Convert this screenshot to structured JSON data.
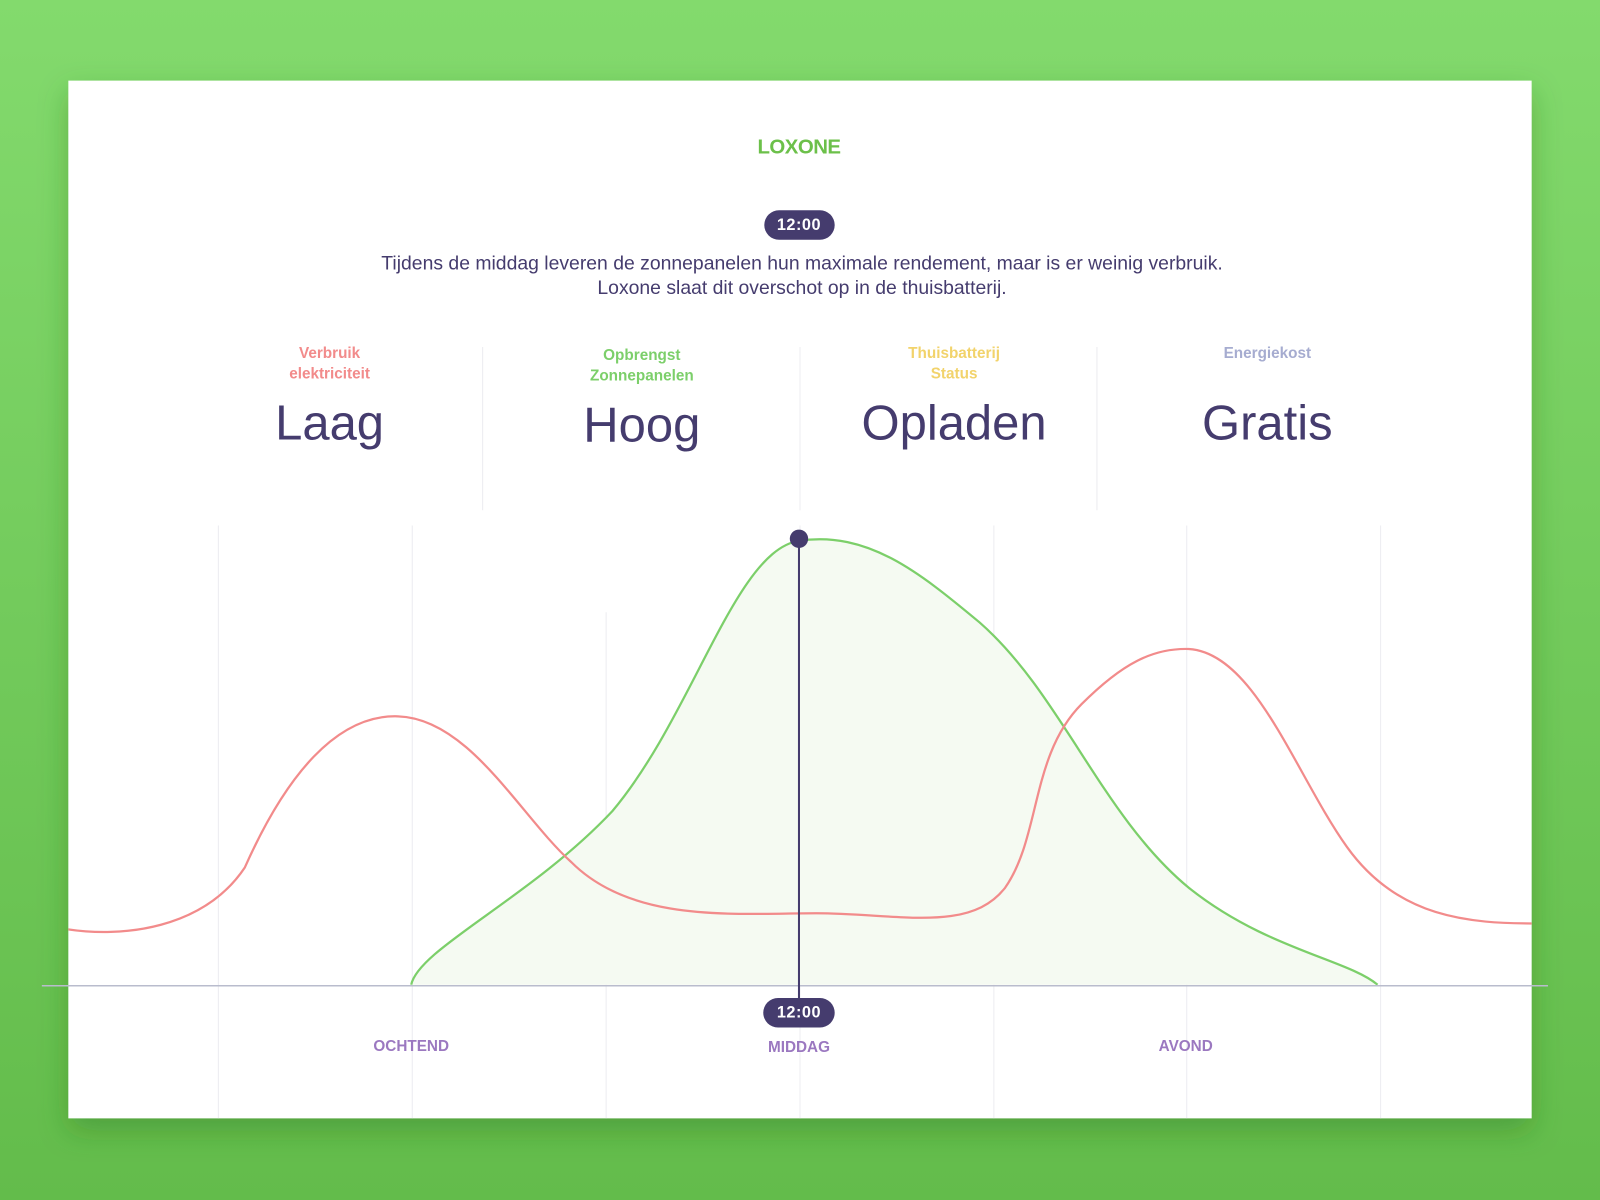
{
  "brand": "LOXONE",
  "time_badge": "12:00",
  "description": [
    "Tijdens de middag leveren de zonnepanelen hun maximale rendement, maar is er weinig verbruik.",
    "Loxone slaat dit overschot op in de thuisbatterij."
  ],
  "stats": [
    {
      "label": [
        "Verbruik",
        "elektriciteit"
      ],
      "value": "Laag"
    },
    {
      "label": [
        "Opbrengst",
        "Zonnepanelen"
      ],
      "value": "Hoog"
    },
    {
      "label": [
        "Thuisbatterij",
        "Status"
      ],
      "value": "Opladen"
    },
    {
      "label": [
        "Energiekost"
      ],
      "value": "Gratis"
    }
  ],
  "marker_badge": "12:00",
  "periods": [
    "OCHTEND",
    "MIDDAG",
    "AVOND"
  ]
}
